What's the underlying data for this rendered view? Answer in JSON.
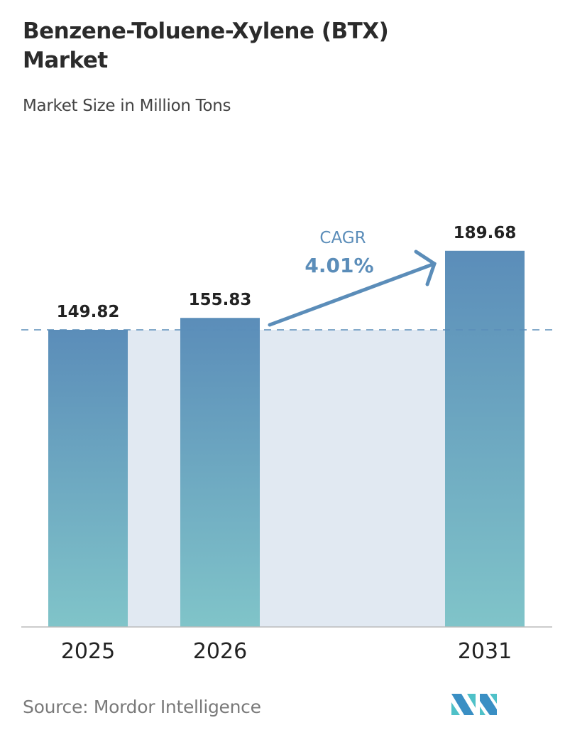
{
  "title": "Benzene-Toluene-Xylene (BTX) Market",
  "subtitle": "Market Size in Million Tons",
  "source": "Source:  Mordor Intelligence",
  "logo_text": "Mordor Intelligence",
  "colors": {
    "bar_top": "#5b8db9",
    "bar_bottom": "#80c4c9",
    "shade": "#e1e9f2",
    "accent": "#5b8db9"
  },
  "chart_data": {
    "type": "bar",
    "categories": [
      "2025",
      "2026",
      "2031"
    ],
    "values": [
      149.82,
      155.83,
      189.68
    ],
    "value_labels": [
      "149.82",
      "155.83",
      "189.68"
    ],
    "title": "Benzene-Toluene-Xylene (BTX) Market",
    "subtitle": "Market Size in Million Tons",
    "ylim": [
      0,
      200
    ],
    "grid": false,
    "annotation": {
      "label": "CAGR",
      "value": "4.01%"
    }
  }
}
